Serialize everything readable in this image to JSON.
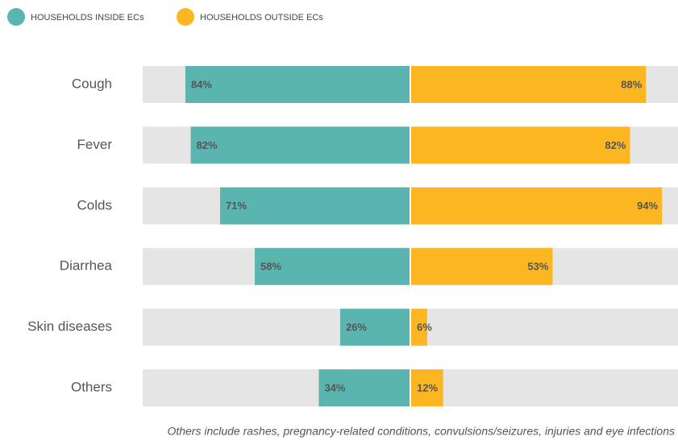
{
  "chart_data": {
    "type": "diverging_bar",
    "categories": [
      "Cough",
      "Fever",
      "Colds",
      "Diarrhea",
      "Skin diseases",
      "Others"
    ],
    "series": [
      {
        "name": "HOUSEHOLDS INSIDE ECs",
        "color": "#5ab5b0",
        "values": [
          84,
          82,
          71,
          58,
          26,
          34
        ],
        "value_labels": [
          "84%",
          "82%",
          "71%",
          "58%",
          "26%",
          "34%"
        ]
      },
      {
        "name": "HOUSEHOLDS OUTSIDE ECs",
        "color": "#fbb621",
        "values": [
          88,
          82,
          94,
          53,
          6,
          12
        ],
        "value_labels": [
          "88%",
          "82%",
          "94%",
          "53%",
          "6%",
          "12%"
        ]
      }
    ],
    "xlim": [
      0,
      100
    ],
    "footnote": "Others include rashes, pregnancy-related conditions, convulsions/seizures, injuries and eye infections"
  }
}
